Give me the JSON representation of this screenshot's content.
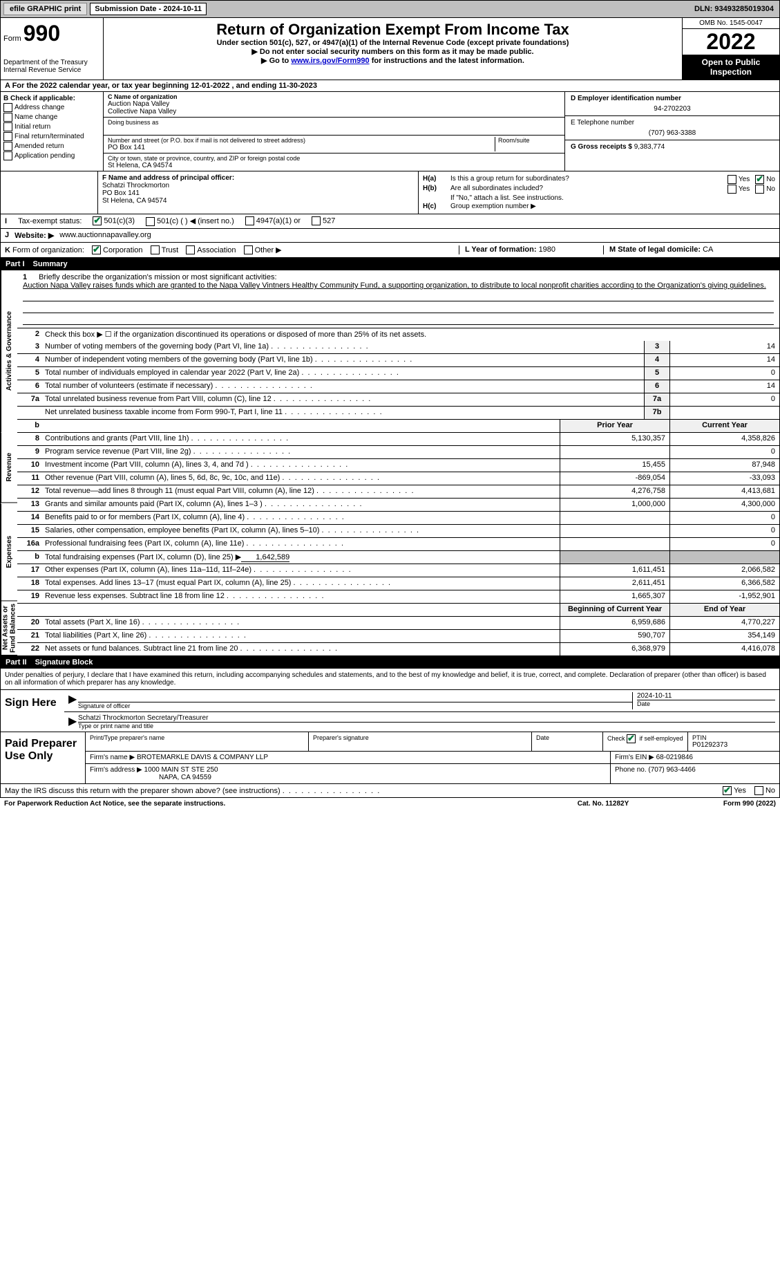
{
  "top": {
    "efile_label": "efile GRAPHIC print",
    "submission_label": "Submission Date - 2024-10-11",
    "dln_label": "DLN: 93493285019304"
  },
  "header": {
    "form_word": "Form",
    "form_num": "990",
    "dept": "Department of the Treasury",
    "irs": "Internal Revenue Service",
    "title": "Return of Organization Exempt From Income Tax",
    "subtitle1": "Under section 501(c), 527, or 4947(a)(1) of the Internal Revenue Code (except private foundations)",
    "subtitle2": "▶ Do not enter social security numbers on this form as it may be made public.",
    "subtitle3_pre": "▶ Go to ",
    "subtitle3_link": "www.irs.gov/Form990",
    "subtitle3_post": " for instructions and the latest information.",
    "omb": "OMB No. 1545-0047",
    "year": "2022",
    "open_pub": "Open to Public Inspection"
  },
  "row_a": "A For the 2022 calendar year, or tax year beginning 12-01-2022   , and ending 11-30-2023",
  "section_b": {
    "header": "B Check if applicable:",
    "o1": "Address change",
    "o2": "Name change",
    "o3": "Initial return",
    "o4": "Final return/terminated",
    "o5": "Amended return",
    "o6": "Application pending"
  },
  "section_c": {
    "name_lbl": "C Name of organization",
    "name1": "Auction Napa Valley",
    "name2": "Collective Napa Valley",
    "dba_lbl": "Doing business as",
    "addr_lbl": "Number and street (or P.O. box if mail is not delivered to street address)",
    "room_lbl": "Room/suite",
    "addr": "PO Box 141",
    "city_lbl": "City or town, state or province, country, and ZIP or foreign postal code",
    "city": "St Helena, CA  94574"
  },
  "section_d": {
    "lbl": "D Employer identification number",
    "val": "94-2702203"
  },
  "section_e": {
    "lbl": "E Telephone number",
    "val": "(707) 963-3388"
  },
  "section_g": {
    "lbl": "G Gross receipts $ ",
    "val": "9,383,774"
  },
  "section_f": {
    "lbl": "F Name and address of principal officer:",
    "name": "Schatzi Throckmorton",
    "addr1": "PO Box 141",
    "addr2": "St Helena, CA  94574"
  },
  "section_h": {
    "ha_lbl": "H(a)",
    "ha_q": "Is this a group return for subordinates?",
    "yes": "Yes",
    "no": "No",
    "hb_lbl": "H(b)",
    "hb_q": "Are all subordinates included?",
    "hb_note": "If \"No,\" attach a list. See instructions.",
    "hc_lbl": "H(c)",
    "hc_q": "Group exemption number ▶"
  },
  "row_i": {
    "lbl": "I",
    "title": "Tax-exempt status:",
    "o1": "501(c)(3)",
    "o2": "501(c) (  ) ◀ (insert no.)",
    "o3": "4947(a)(1) or",
    "o4": "527"
  },
  "row_j": {
    "lbl": "J",
    "title": "Website: ▶",
    "val": "www.auctionnapavalley.org"
  },
  "row_k": {
    "lbl": "K",
    "title": "Form of organization:",
    "o1": "Corporation",
    "o2": "Trust",
    "o3": "Association",
    "o4": "Other ▶",
    "l_lbl": "L Year of formation: ",
    "l_val": "1980",
    "m_lbl": "M State of legal domicile: ",
    "m_val": "CA"
  },
  "partI": {
    "num": "Part I",
    "title": "Summary",
    "vtabs": {
      "ag": "Activities & Governance",
      "rev": "Revenue",
      "exp": "Expenses",
      "na": "Net Assets or Fund Balances"
    },
    "line1_lbl": "Briefly describe the organization's mission or most significant activities:",
    "line1_val": "Auction Napa Valley raises funds which are granted to the Napa Valley Vintners Healthy Community Fund, a supporting organization, to distribute to local nonprofit charities according to the Organization's giving guidelines.",
    "line2": "Check this box ▶ ☐ if the organization discontinued its operations or disposed of more than 25% of its net assets.",
    "lines": [
      {
        "n": "3",
        "d": "Number of voting members of the governing body (Part VI, line 1a)",
        "box": "3",
        "v": "14"
      },
      {
        "n": "4",
        "d": "Number of independent voting members of the governing body (Part VI, line 1b)",
        "box": "4",
        "v": "14"
      },
      {
        "n": "5",
        "d": "Total number of individuals employed in calendar year 2022 (Part V, line 2a)",
        "box": "5",
        "v": "0"
      },
      {
        "n": "6",
        "d": "Total number of volunteers (estimate if necessary)",
        "box": "6",
        "v": "14"
      },
      {
        "n": "7a",
        "d": "Total unrelated business revenue from Part VIII, column (C), line 12",
        "box": "7a",
        "v": "0"
      },
      {
        "n": "",
        "d": "Net unrelated business taxable income from Form 990-T, Part I, line 11",
        "box": "7b",
        "v": ""
      }
    ],
    "col_headers": {
      "b": "b",
      "py": "Prior Year",
      "cy": "Current Year"
    },
    "rev_lines": [
      {
        "n": "8",
        "d": "Contributions and grants (Part VIII, line 1h)",
        "py": "5,130,357",
        "cy": "4,358,826"
      },
      {
        "n": "9",
        "d": "Program service revenue (Part VIII, line 2g)",
        "py": "",
        "cy": "0"
      },
      {
        "n": "10",
        "d": "Investment income (Part VIII, column (A), lines 3, 4, and 7d )",
        "py": "15,455",
        "cy": "87,948"
      },
      {
        "n": "11",
        "d": "Other revenue (Part VIII, column (A), lines 5, 6d, 8c, 9c, 10c, and 11e)",
        "py": "-869,054",
        "cy": "-33,093"
      },
      {
        "n": "12",
        "d": "Total revenue—add lines 8 through 11 (must equal Part VIII, column (A), line 12)",
        "py": "4,276,758",
        "cy": "4,413,681"
      }
    ],
    "exp_lines": [
      {
        "n": "13",
        "d": "Grants and similar amounts paid (Part IX, column (A), lines 1–3 )",
        "py": "1,000,000",
        "cy": "4,300,000"
      },
      {
        "n": "14",
        "d": "Benefits paid to or for members (Part IX, column (A), line 4)",
        "py": "",
        "cy": "0"
      },
      {
        "n": "15",
        "d": "Salaries, other compensation, employee benefits (Part IX, column (A), lines 5–10)",
        "py": "",
        "cy": "0"
      },
      {
        "n": "16a",
        "d": "Professional fundraising fees (Part IX, column (A), line 11e)",
        "py": "",
        "cy": "0"
      }
    ],
    "line16b_n": "b",
    "line16b_d": "Total fundraising expenses (Part IX, column (D), line 25) ▶",
    "line16b_v": "1,642,589",
    "exp_lines2": [
      {
        "n": "17",
        "d": "Other expenses (Part IX, column (A), lines 11a–11d, 11f–24e)",
        "py": "1,611,451",
        "cy": "2,066,582"
      },
      {
        "n": "18",
        "d": "Total expenses. Add lines 13–17 (must equal Part IX, column (A), line 25)",
        "py": "2,611,451",
        "cy": "6,366,582"
      },
      {
        "n": "19",
        "d": "Revenue less expenses. Subtract line 18 from line 12",
        "py": "1,665,307",
        "cy": "-1,952,901"
      }
    ],
    "na_headers": {
      "py": "Beginning of Current Year",
      "cy": "End of Year"
    },
    "na_lines": [
      {
        "n": "20",
        "d": "Total assets (Part X, line 16)",
        "py": "6,959,686",
        "cy": "4,770,227"
      },
      {
        "n": "21",
        "d": "Total liabilities (Part X, line 26)",
        "py": "590,707",
        "cy": "354,149"
      },
      {
        "n": "22",
        "d": "Net assets or fund balances. Subtract line 21 from line 20",
        "py": "6,368,979",
        "cy": "4,416,078"
      }
    ]
  },
  "partII": {
    "num": "Part II",
    "title": "Signature Block",
    "declare": "Under penalties of perjury, I declare that I have examined this return, including accompanying schedules and statements, and to the best of my knowledge and belief, it is true, correct, and complete. Declaration of preparer (other than officer) is based on all information of which preparer has any knowledge.",
    "sign_here": "Sign Here",
    "sig_of_officer": "Signature of officer",
    "date_lbl": "Date",
    "date_val": "2024-10-11",
    "officer_name": "Schatzi Throckmorton  Secretary/Treasurer",
    "type_name_lbl": "Type or print name and title"
  },
  "preparer": {
    "title": "Paid Preparer Use Only",
    "print_lbl": "Print/Type preparer's name",
    "sig_lbl": "Preparer's signature",
    "date_lbl": "Date",
    "check_lbl": "Check",
    "self_emp": "if self-employed",
    "ptin_lbl": "PTIN",
    "ptin": "P01292373",
    "firm_name_lbl": "Firm's name    ▶ ",
    "firm_name": "BROTEMARKLE DAVIS & COMPANY LLP",
    "firm_ein_lbl": "Firm's EIN ▶ ",
    "firm_ein": "68-0219846",
    "firm_addr_lbl": "Firm's address ▶ ",
    "firm_addr1": "1000 MAIN ST STE 250",
    "firm_addr2": "NAPA, CA  94559",
    "phone_lbl": "Phone no. ",
    "phone": "(707) 963-4466"
  },
  "discuss": {
    "q": "May the IRS discuss this return with the preparer shown above? (see instructions)",
    "yes": "Yes",
    "no": "No"
  },
  "footer": {
    "left": "For Paperwork Reduction Act Notice, see the separate instructions.",
    "mid": "Cat. No. 11282Y",
    "right": "Form 990 (2022)"
  }
}
